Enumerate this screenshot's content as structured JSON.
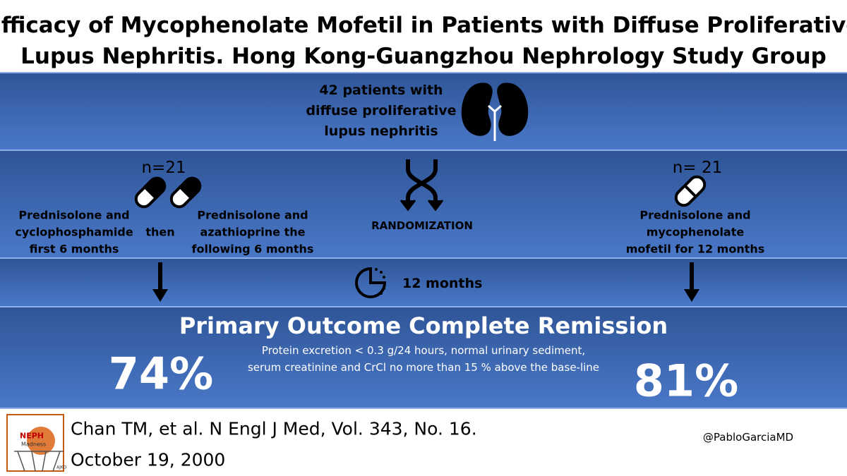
{
  "title": {
    "lines": [
      "Efficacy of Mycophenolate Mofetil in Patients with Diffuse Proliferative",
      "Lupus Nephritis. Hong Kong-Guangzhou Nephrology Study Group"
    ]
  },
  "population": {
    "lines": [
      "42 patients with",
      "diffuse proliferative",
      "lupus nephritis"
    ]
  },
  "arm_left": {
    "n": "n=21",
    "phase1": [
      "Prednisolone and",
      "cyclophosphamide",
      "first 6 months"
    ],
    "connector": "then",
    "phase2": [
      "Prednisolone and",
      "azathioprine the",
      "following 6 months"
    ]
  },
  "randomization": "RANDOMIZATION",
  "arm_right": {
    "n": "n= 21",
    "treatment": [
      "Prednisolone and",
      "mycophenolate",
      "mofetil for 12 months"
    ]
  },
  "duration": "12 months",
  "outcome": {
    "title": "Primary Outcome Complete Remission",
    "definition": [
      "Protein excretion < 0.3 g/24 hours, normal urinary sediment,",
      "serum creatinine and CrCl no more than 15 % above the base-line"
    ],
    "left_result": "74%",
    "right_result": "81%"
  },
  "citation": {
    "lines": [
      "Chan TM, et al. N Engl J Med, Vol. 343, No. 16.",
      "October 19, 2000"
    ]
  },
  "logo": {
    "lines": [
      "NEPH",
      "Madness"
    ],
    "tag": "AJKD"
  },
  "handle": "@PabloGarciaMD"
}
